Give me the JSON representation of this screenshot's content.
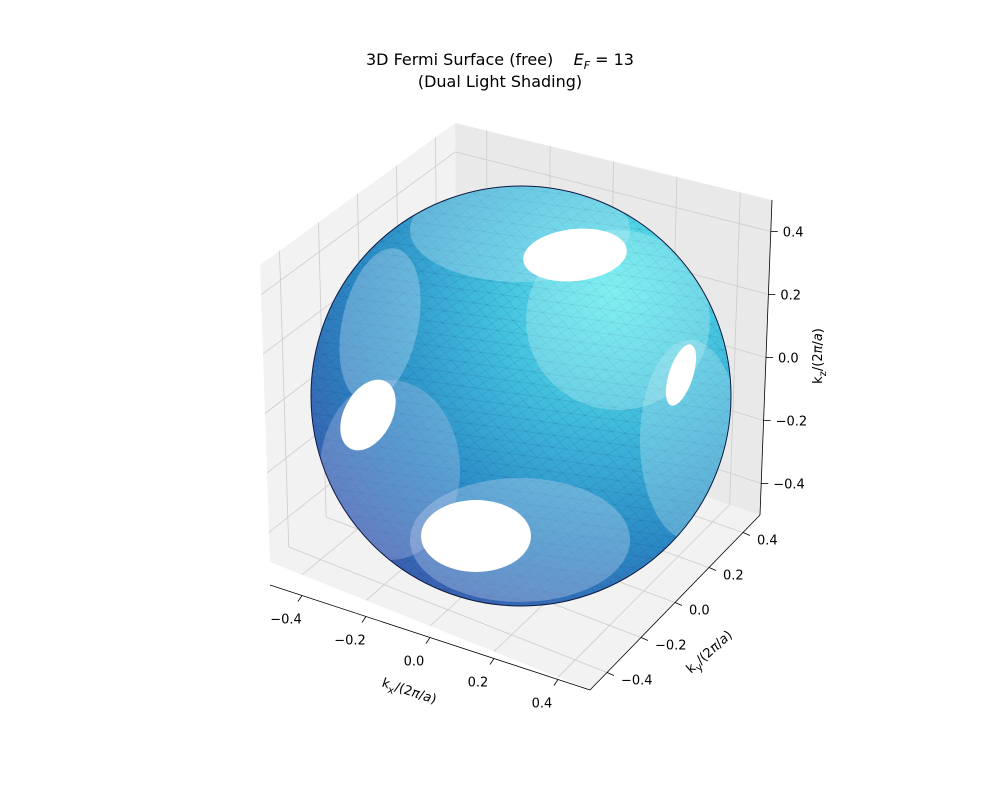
{
  "chart_data": {
    "type": "surface3d",
    "title": "3D Fermi Surface (free)",
    "title_symbol": "E",
    "title_subscript": "F",
    "title_value": "= 13",
    "subtitle": "(Dual Light Shading)",
    "xlabel": "k_x/(2π/a)",
    "ylabel": "k_y/(2π/a)",
    "zlabel": "k_z/(2π/a)",
    "xlim": [
      -0.5,
      0.5
    ],
    "ylim": [
      -0.5,
      0.5
    ],
    "zlim": [
      -0.5,
      0.5
    ],
    "x_ticks": [
      "−0.4",
      "−0.2",
      "0.0",
      "0.2",
      "0.4"
    ],
    "y_ticks": [
      "−0.4",
      "−0.2",
      "0.0",
      "0.2",
      "0.4"
    ],
    "z_ticks": [
      "−0.4",
      "−0.2",
      "0.0",
      "0.2",
      "0.4"
    ],
    "x_tick_values": [
      -0.4,
      -0.2,
      0.0,
      0.2,
      0.4
    ],
    "y_tick_values": [
      -0.4,
      -0.2,
      0.0,
      0.2,
      0.4
    ],
    "z_tick_values": [
      -0.4,
      -0.2,
      0.0,
      0.2,
      0.4
    ],
    "surface": "sphere truncated by Brillouin-zone faces (holes at cube faces)",
    "colors": {
      "dark": "#1a237e",
      "mid": "#2e8bc0",
      "light": "#5ce8ec",
      "pane": "#f2f2f2",
      "grid": "#cccccc"
    }
  }
}
